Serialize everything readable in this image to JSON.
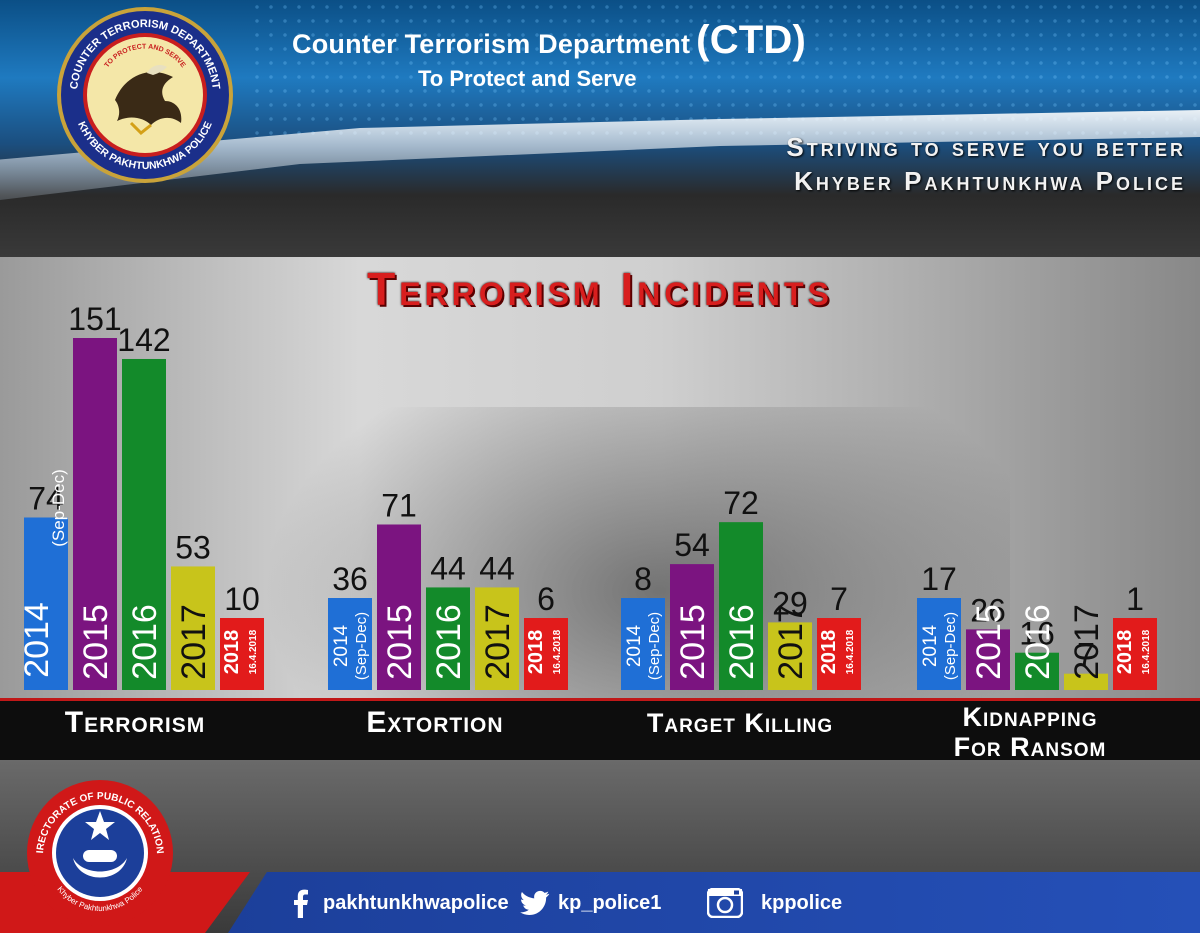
{
  "header": {
    "title": "Counter Terrorism Department",
    "abbr": "(CTD)",
    "motto": "To Protect and Serve",
    "slogan_line1": "Striving to serve you better",
    "slogan_line2": "Khyber Pakhtunkhwa Police",
    "logo_text_top": "COUNTER TERRORISM DEPARTMENT",
    "logo_text_inner": "TO PROTECT AND SERVE",
    "logo_text_bottom": "KHYBER PAKHTUNKHWA POLICE"
  },
  "colors": {
    "2014": "#1f6fd6",
    "2015": "#7b1480",
    "2016": "#138a2a",
    "2017": "#c8c41b",
    "2018": "#e21b1b",
    "title_red": "#d81e1e",
    "footer_blue": "#2550b8"
  },
  "chart_data": {
    "type": "bar",
    "title": "Terrorism Incidents",
    "groups": [
      {
        "category": "Terrorism",
        "bars": [
          {
            "year": "2014",
            "note": "(Sep-Dec)",
            "value": 74
          },
          {
            "year": "2015",
            "note": "",
            "value": 151
          },
          {
            "year": "2016",
            "note": "",
            "value": 142
          },
          {
            "year": "2017",
            "note": "",
            "value": 53
          },
          {
            "year": "2018",
            "note": "16.4.2018",
            "value": 10
          }
        ]
      },
      {
        "category": "Extortion",
        "bars": [
          {
            "year": "2014",
            "note": "(Sep-Dec)",
            "value": 36
          },
          {
            "year": "2015",
            "note": "",
            "value": 71
          },
          {
            "year": "2016",
            "note": "",
            "value": 44
          },
          {
            "year": "2017",
            "note": "",
            "value": 44
          },
          {
            "year": "2018",
            "note": "16.4.2018",
            "value": 6
          }
        ]
      },
      {
        "category": "Target Killing",
        "bars": [
          {
            "year": "2014",
            "note": "(Sep-Dec)",
            "value": 8
          },
          {
            "year": "2015",
            "note": "",
            "value": 54
          },
          {
            "year": "2016",
            "note": "",
            "value": 72
          },
          {
            "year": "2017",
            "note": "",
            "value": 29
          },
          {
            "year": "2018",
            "note": "16.4.2018",
            "value": 7
          }
        ]
      },
      {
        "category": "Kidnapping For Ransom",
        "bars": [
          {
            "year": "2014",
            "note": "(Sep-Dec)",
            "value": 17
          },
          {
            "year": "2015",
            "note": "",
            "value": 26
          },
          {
            "year": "2016",
            "note": "",
            "value": 16
          },
          {
            "year": "2017",
            "note": "",
            "value": 7
          },
          {
            "year": "2018",
            "note": "16.4.2018",
            "value": 1
          }
        ]
      }
    ],
    "legend": "none",
    "grid": false
  },
  "categories": {
    "terrorism": "Terrorism",
    "extortion": "Extortion",
    "target_killing": "Target Killing",
    "kidnapping_line1": "Kidnapping",
    "kidnapping_line2": "For Ransom"
  },
  "footer": {
    "dpr_text_top": "DIRECTORATE OF PUBLIC RELATIONS",
    "dpr_text_bottom": "Khyber Pakhtunkhwa Police",
    "facebook": "pakhtunkhwapolice",
    "twitter": "kp_police1",
    "instagram": "kppolice",
    "facebook_icon": "facebook-icon",
    "twitter_icon": "twitter-icon",
    "instagram_icon": "instagram-icon"
  }
}
